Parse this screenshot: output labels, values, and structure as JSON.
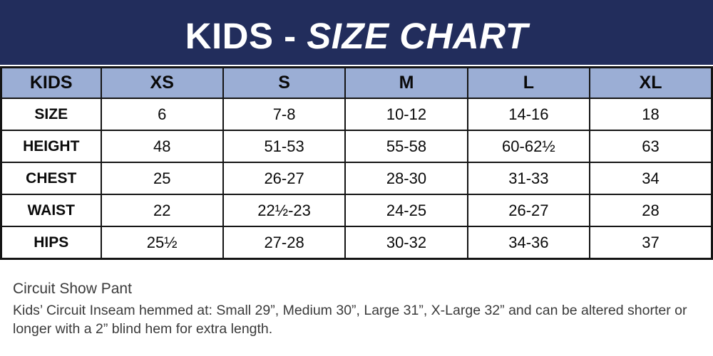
{
  "banner": {
    "title_prefix": "KIDS - ",
    "title_emphasis": "SIZE CHART"
  },
  "colors": {
    "banner_bg": "#222d5c",
    "header_row_bg": "#9baed5",
    "table_border": "#141414",
    "title_text": "#ffffff",
    "table_text": "#0a0a0a",
    "footer_text": "#3a3a3a"
  },
  "table": {
    "columns": [
      "KIDS",
      "XS",
      "S",
      "M",
      "L",
      "XL"
    ],
    "rows": [
      {
        "label": "SIZE",
        "values": [
          "6",
          "7-8",
          "10-12",
          "14-16",
          "18"
        ]
      },
      {
        "label": "HEIGHT",
        "values": [
          "48",
          "51-53",
          "55-58",
          "60-62½",
          "63"
        ]
      },
      {
        "label": "CHEST",
        "values": [
          "25",
          "26-27",
          "28-30",
          "31-33",
          "34"
        ]
      },
      {
        "label": "WAIST",
        "values": [
          "22",
          "22½-23",
          "24-25",
          "26-27",
          "28"
        ]
      },
      {
        "label": "HIPS",
        "values": [
          "25½",
          "27-28",
          "30-32",
          "34-36",
          "37"
        ]
      }
    ]
  },
  "footer": {
    "product_name": "Circuit Show Pant",
    "note": "Kids’ Circuit Inseam hemmed at: Small 29”, Medium 30”, Large 31”, X-Large 32” and can be altered shorter or longer with a 2” blind hem for extra length."
  }
}
